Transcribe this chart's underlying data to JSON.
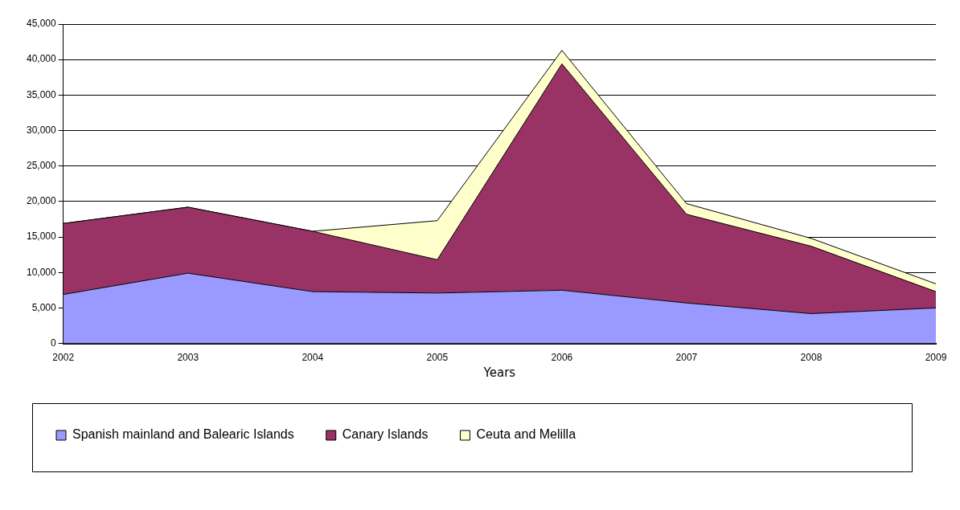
{
  "chart_data": {
    "type": "area",
    "stacked": true,
    "xlabel": "Years",
    "categories": [
      "2002",
      "2003",
      "2004",
      "2005",
      "2006",
      "2007",
      "2008",
      "2009"
    ],
    "series": [
      {
        "name": "Spanish mainland and Balearic Islands",
        "color": "#9999ff",
        "values": [
          6900,
          9900,
          7300,
          7100,
          7500,
          5700,
          4200,
          5000
        ]
      },
      {
        "name": "Canary Islands",
        "color": "#993366",
        "values": [
          10000,
          9300,
          8500,
          4700,
          31900,
          12500,
          9500,
          2300
        ]
      },
      {
        "name": "Ceuta and Melilla",
        "color": "#ffffcc",
        "values": [
          0,
          0,
          0,
          5500,
          1900,
          1500,
          1100,
          1100
        ]
      }
    ],
    "ylim": [
      0,
      45000
    ],
    "yticks": [
      0,
      {
        "value": 5000,
        "label": "5,000"
      },
      {
        "value": 10000,
        "label": "10,000"
      },
      {
        "value": 15000,
        "label": "15,000"
      },
      {
        "value": 20000,
        "label": "20,000"
      },
      {
        "value": 25000,
        "label": "25,000"
      },
      {
        "value": 30000,
        "label": "30,000"
      },
      {
        "value": 35000,
        "label": "35,000"
      },
      {
        "value": 40000,
        "label": "40,000"
      },
      {
        "value": 45000,
        "label": "45,000"
      }
    ],
    "grid": "y",
    "legend": "bottom"
  }
}
